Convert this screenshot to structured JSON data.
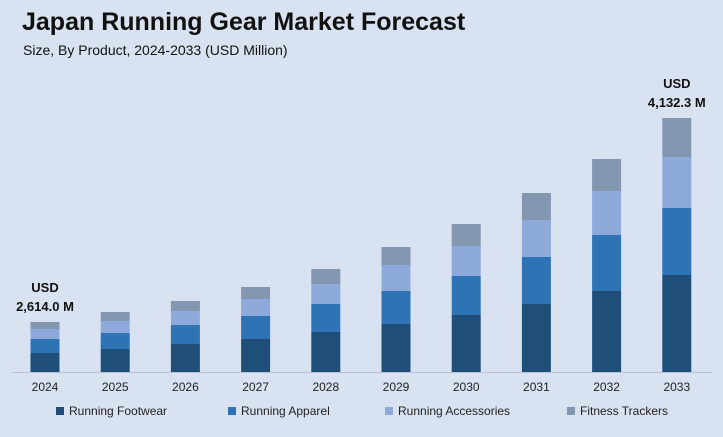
{
  "title": "Japan Running Gear Market Forecast",
  "subtitle": "Size, By Product, 2024-2033 (USD Million)",
  "chart_data": {
    "type": "bar",
    "stacked": true,
    "categories": [
      "2024",
      "2025",
      "2026",
      "2027",
      "2028",
      "2029",
      "2030",
      "2031",
      "2032",
      "2033"
    ],
    "series": [
      {
        "name": "Running Footwear",
        "color": "#1f4e79",
        "values": [
          19,
          23,
          28,
          33,
          40,
          48,
          57,
          68,
          81,
          97
        ]
      },
      {
        "name": "Running Apparel",
        "color": "#2e74b5",
        "values": [
          14,
          16,
          19,
          23,
          28,
          33,
          39,
          47,
          56,
          67
        ]
      },
      {
        "name": "Running Accessories",
        "color": "#8eaadb",
        "values": [
          10,
          12,
          14,
          17,
          20,
          26,
          30,
          37,
          44,
          51
        ]
      },
      {
        "name": "Fitness Trackers",
        "color": "#8497b0",
        "values": [
          7,
          9,
          10,
          12,
          15,
          18,
          22,
          27,
          32,
          39
        ]
      }
    ],
    "annotations": [
      {
        "category": "2024",
        "line1": "USD",
        "line2": "2,614.0 M"
      },
      {
        "category": "2033",
        "line1": "USD",
        "line2": "4,132.3 M"
      }
    ],
    "xlabel": "",
    "ylabel": "",
    "ylim": [
      0,
      254
    ],
    "grid": false,
    "legend": "bottom"
  }
}
